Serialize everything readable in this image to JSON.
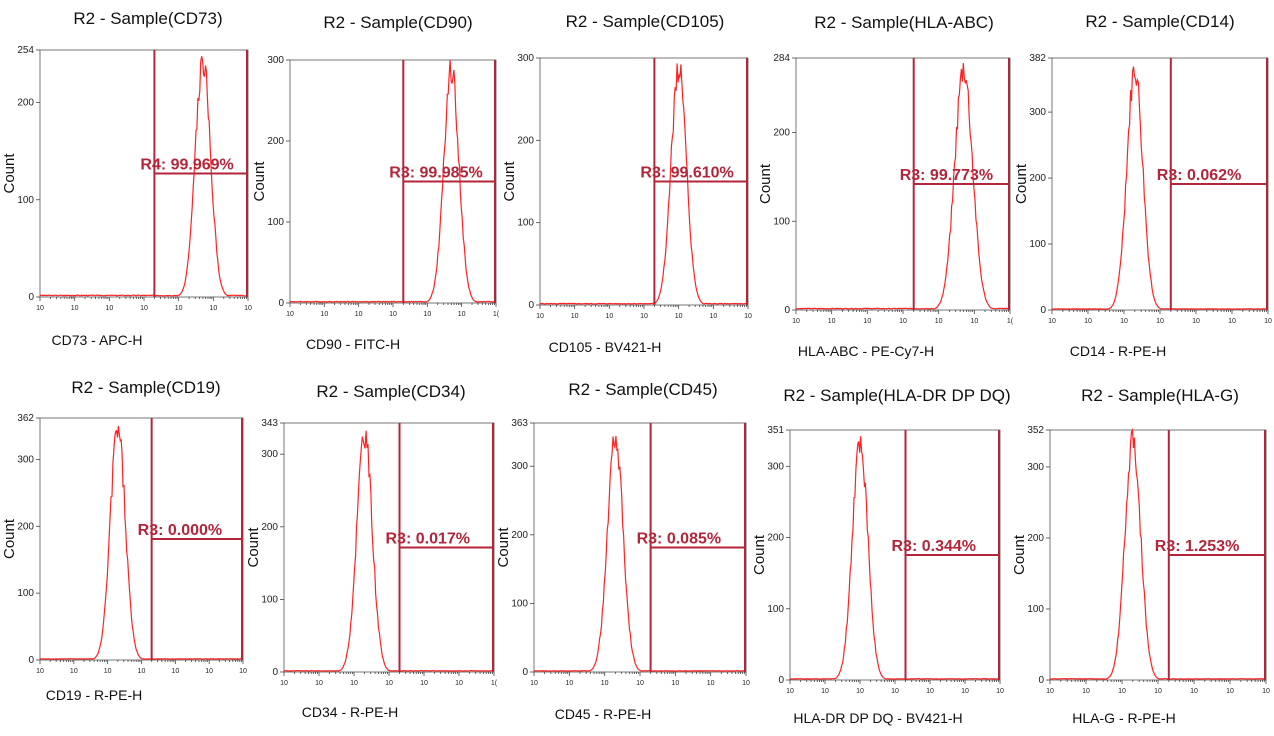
{
  "chart_data": [
    {
      "type": "histogram",
      "title": "R2 - Sample(CD73)",
      "xlabel": "CD73 - APC-H",
      "ylabel": "Count",
      "ymax": 254,
      "yticks": [
        0,
        100,
        200,
        254
      ],
      "xticks": [
        "10",
        "10",
        "10",
        "10",
        "10",
        "10",
        "10"
      ],
      "gate_start_decade": 3.3,
      "gate_label": "R4: 99.969%",
      "gate_fraction": 0.5,
      "peak_decade": 4.7,
      "peak_width": 0.22,
      "peak_count": 254
    },
    {
      "type": "histogram",
      "title": "R2 - Sample(CD90)",
      "xlabel": "CD90 - FITC-H",
      "ylabel": "Count",
      "ymax": 300,
      "yticks": [
        0,
        100,
        200,
        300
      ],
      "xticks": [
        "10",
        "10",
        "10",
        "10",
        "10",
        "10",
        "1("
      ],
      "gate_start_decade": 3.3,
      "gate_label": "R3: 99.985%",
      "gate_fraction": 0.5,
      "peak_decade": 4.7,
      "peak_width": 0.22,
      "peak_count": 300
    },
    {
      "type": "histogram",
      "title": "R2 - Sample(CD105)",
      "xlabel": "CD105 - BV421-H",
      "ylabel": "Count",
      "ymax": 300,
      "yticks": [
        0,
        100,
        200,
        300
      ],
      "xticks": [
        "10",
        "10",
        "10",
        "10",
        "10",
        "10",
        "10"
      ],
      "gate_start_decade": 3.3,
      "gate_label": "R3: 99.610%",
      "gate_fraction": 0.5,
      "peak_decade": 4.0,
      "peak_width": 0.22,
      "peak_count": 300
    },
    {
      "type": "histogram",
      "title": "R2 - Sample(HLA-ABC)",
      "xlabel": "HLA-ABC - PE-Cy7-H",
      "ylabel": "Count",
      "ymax": 284,
      "yticks": [
        0,
        100,
        200,
        284
      ],
      "xticks": [
        "10",
        "10",
        "10",
        "10",
        "10",
        "10",
        "1("
      ],
      "gate_start_decade": 3.3,
      "gate_label": "R3: 99.773%",
      "gate_fraction": 0.5,
      "peak_decade": 4.7,
      "peak_width": 0.25,
      "peak_count": 284
    },
    {
      "type": "histogram",
      "title": "R2 - Sample(CD14)",
      "xlabel": "CD14 - R-PE-H",
      "ylabel": "Count",
      "ymax": 382,
      "yticks": [
        0,
        100,
        200,
        300,
        382
      ],
      "xticks": [
        "10",
        "10",
        "10",
        "10",
        "10",
        "10",
        "10"
      ],
      "gate_start_decade": 3.3,
      "gate_label": "R3: 0.062%",
      "gate_fraction": 0.5,
      "peak_decade": 2.3,
      "peak_width": 0.22,
      "peak_count": 382
    },
    {
      "type": "histogram",
      "title": "R2 - Sample(CD19)",
      "xlabel": "CD19 - R-PE-H",
      "ylabel": "Count",
      "ymax": 362,
      "yticks": [
        0,
        100,
        200,
        300,
        362
      ],
      "xticks": [
        "10",
        "10",
        "10",
        "10",
        "10",
        "10",
        "10"
      ],
      "gate_start_decade": 3.3,
      "gate_label": "R3: 0.000%",
      "gate_fraction": 0.5,
      "peak_decade": 2.3,
      "peak_width": 0.22,
      "peak_count": 362
    },
    {
      "type": "histogram",
      "title": "R2 - Sample(CD34)",
      "xlabel": "CD34 - R-PE-H",
      "ylabel": "Count",
      "ymax": 343,
      "yticks": [
        0,
        100,
        200,
        300,
        343
      ],
      "xticks": [
        "10",
        "10",
        "10",
        "10",
        "10",
        "10",
        "1("
      ],
      "gate_start_decade": 3.3,
      "gate_label": "R3: 0.017%",
      "gate_fraction": 0.5,
      "peak_decade": 2.3,
      "peak_width": 0.22,
      "peak_count": 343
    },
    {
      "type": "histogram",
      "title": "R2 - Sample(CD45)",
      "xlabel": "CD45 - R-PE-H",
      "ylabel": "Count",
      "ymax": 363,
      "yticks": [
        0,
        100,
        200,
        300,
        363
      ],
      "xticks": [
        "10",
        "10",
        "10",
        "10",
        "10",
        "10",
        "10"
      ],
      "gate_start_decade": 3.3,
      "gate_label": "R3: 0.085%",
      "gate_fraction": 0.5,
      "peak_decade": 2.3,
      "peak_width": 0.22,
      "peak_count": 363
    },
    {
      "type": "histogram",
      "title": "R2 - Sample(HLA-DR DP DQ)",
      "xlabel": "HLA-DR DP DQ - BV421-H",
      "ylabel": "Count",
      "ymax": 351,
      "yticks": [
        0,
        100,
        200,
        300,
        351
      ],
      "xticks": [
        "10",
        "10",
        "10",
        "10",
        "10",
        "10",
        "10"
      ],
      "gate_start_decade": 3.3,
      "gate_label": "R3: 0.344%",
      "gate_fraction": 0.5,
      "peak_decade": 2.0,
      "peak_width": 0.22,
      "peak_count": 351
    },
    {
      "type": "histogram",
      "title": "R2 - Sample(HLA-G)",
      "xlabel": "HLA-G - R-PE-H",
      "ylabel": "Count",
      "ymax": 352,
      "yticks": [
        0,
        100,
        200,
        300,
        352
      ],
      "xticks": [
        "10",
        "10",
        "10",
        "10",
        "10",
        "10",
        "10"
      ],
      "gate_start_decade": 3.3,
      "gate_label": "R3: 1.253%",
      "gate_fraction": 0.5,
      "peak_decade": 2.3,
      "peak_width": 0.22,
      "peak_count": 352
    }
  ],
  "colors": {
    "histogram": "#ff2222",
    "gate": "#b3263a"
  }
}
